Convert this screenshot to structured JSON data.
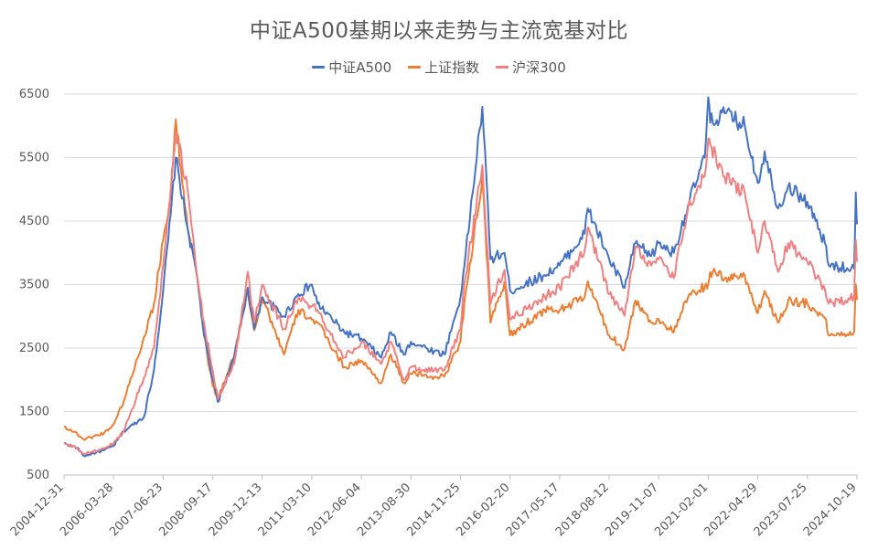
{
  "chart_data": {
    "type": "line",
    "title": "中证A500基期以来走势与主流宽基对比",
    "xlabel": "",
    "ylabel": "",
    "ylim": [
      500,
      6500
    ],
    "yticks": [
      500,
      1500,
      2500,
      3500,
      4500,
      5500,
      6500
    ],
    "legend_position": "top-center",
    "grid": "horizontal",
    "x_tick_labels": [
      "2004-12-31",
      "2006-03-28",
      "2007-06-23",
      "2008-09-17",
      "2009-12-13",
      "2011-03-10",
      "2012-06-04",
      "2013-08-30",
      "2014-11-25",
      "2016-02-20",
      "2017-05-17",
      "2018-08-12",
      "2019-11-07",
      "2021-02-01",
      "2022-04-29",
      "2023-07-25",
      "2024-10-19"
    ],
    "x": [
      "2004-12-31",
      "2005-04-30",
      "2005-06-30",
      "2005-12-31",
      "2006-03-28",
      "2006-06-30",
      "2006-12-31",
      "2007-03-31",
      "2007-06-23",
      "2007-08-31",
      "2007-10-16",
      "2008-01-31",
      "2008-04-30",
      "2008-06-30",
      "2008-09-17",
      "2008-11-04",
      "2009-03-31",
      "2009-08-04",
      "2009-09-30",
      "2009-12-13",
      "2010-06-30",
      "2010-11-08",
      "2011-03-10",
      "2011-04-30",
      "2011-12-31",
      "2012-06-04",
      "2012-12-03",
      "2013-02-28",
      "2013-06-25",
      "2013-08-30",
      "2014-03-31",
      "2014-06-30",
      "2014-11-25",
      "2014-12-31",
      "2015-06-12",
      "2015-08-26",
      "2015-12-31",
      "2016-02-20",
      "2016-12-31",
      "2017-05-17",
      "2017-12-31",
      "2018-01-29",
      "2018-08-12",
      "2018-12-31",
      "2019-04-08",
      "2019-08-31",
      "2019-11-07",
      "2020-03-23",
      "2020-07-31",
      "2020-12-31",
      "2021-02-01",
      "2021-02-18",
      "2021-06-30",
      "2021-12-31",
      "2022-04-29",
      "2022-06-30",
      "2022-10-31",
      "2023-01-31",
      "2023-07-25",
      "2023-12-31",
      "2024-02-05",
      "2024-09-23",
      "2024-10-08",
      "2024-10-19"
    ],
    "series": [
      {
        "name": "中证A500",
        "color": "#4472C4",
        "values": [
          1000,
          930,
          800,
          890,
          960,
          1190,
          1420,
          2150,
          3400,
          4600,
          5500,
          4400,
          3600,
          2700,
          2000,
          1650,
          2350,
          3450,
          2800,
          3300,
          3000,
          3350,
          3500,
          3200,
          2750,
          2650,
          2350,
          2750,
          2400,
          2600,
          2450,
          2400,
          3300,
          3800,
          6300,
          3900,
          4000,
          3400,
          3650,
          3800,
          4300,
          4700,
          3900,
          3450,
          4150,
          3950,
          4150,
          4000,
          4750,
          5500,
          6450,
          6050,
          6200,
          6000,
          5100,
          5600,
          4700,
          5050,
          4800,
          4150,
          3800,
          3750,
          4950,
          4450
        ]
      },
      {
        "name": "上证指数",
        "color": "#ED7D31",
        "values": [
          1266,
          1150,
          1060,
          1161,
          1300,
          1670,
          2675,
          3200,
          4200,
          4900,
          6100,
          4400,
          3600,
          2700,
          1900,
          1700,
          2370,
          3400,
          2780,
          3300,
          2400,
          3100,
          2950,
          2900,
          2200,
          2300,
          1950,
          2400,
          1950,
          2100,
          2050,
          2050,
          2600,
          3234,
          5170,
          2900,
          3539,
          2700,
          3100,
          3100,
          3300,
          3550,
          2700,
          2490,
          3250,
          2900,
          2950,
          2750,
          3300,
          3470,
          3500,
          3700,
          3600,
          3640,
          3050,
          3400,
          2900,
          3250,
          3200,
          2975,
          2700,
          2750,
          3500,
          3260
        ]
      },
      {
        "name": "沪深300",
        "color": "#F08080",
        "values": [
          1000,
          920,
          830,
          920,
          1000,
          1200,
          2040,
          2500,
          3800,
          5000,
          5900,
          5000,
          3600,
          2900,
          2150,
          1700,
          2250,
          3700,
          2900,
          3500,
          2800,
          3300,
          3150,
          3100,
          2350,
          2600,
          2250,
          2600,
          2000,
          2200,
          2150,
          2150,
          2800,
          3530,
          5380,
          3200,
          3730,
          2950,
          3310,
          3450,
          4030,
          4400,
          3350,
          3010,
          4100,
          3800,
          3900,
          3600,
          4700,
          5211,
          5800,
          5700,
          5200,
          4940,
          4000,
          4500,
          3700,
          4150,
          3850,
          3430,
          3200,
          3300,
          4200,
          3860
        ]
      }
    ]
  }
}
